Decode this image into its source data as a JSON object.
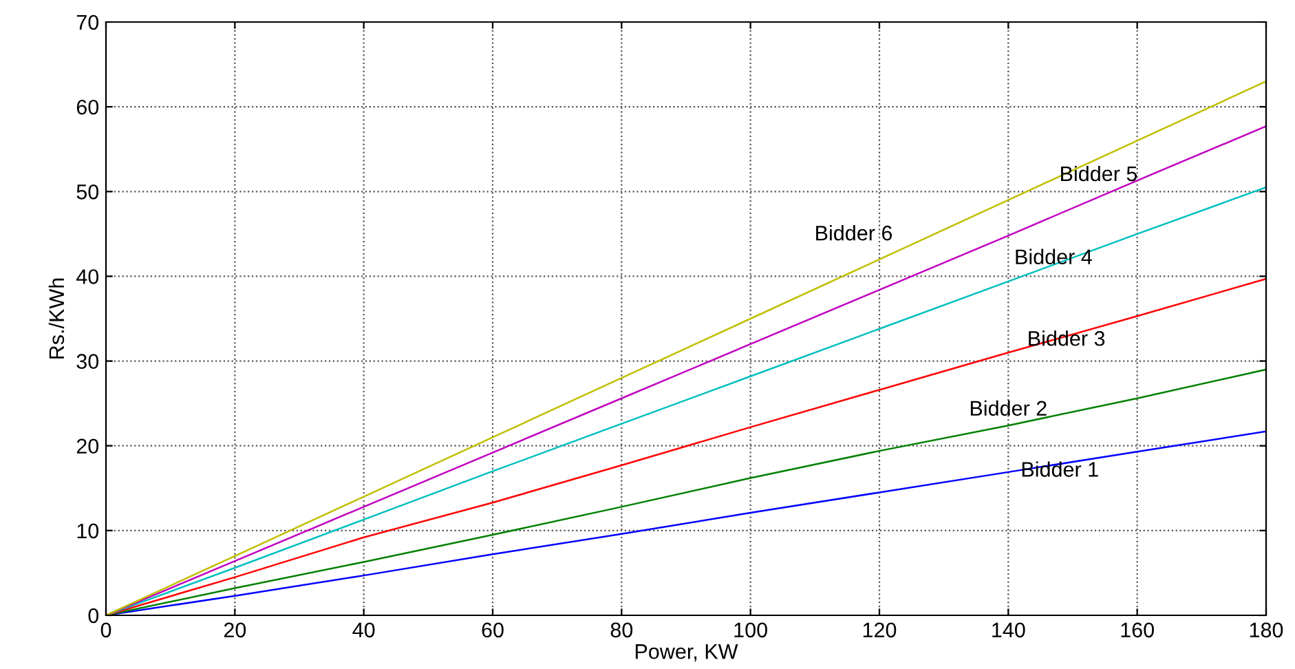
{
  "chart_data": {
    "type": "line",
    "xlabel": "Power, KW",
    "ylabel": "Rs./KWh",
    "x": [
      0,
      20,
      40,
      60,
      80,
      100,
      120,
      140,
      160,
      180
    ],
    "series": [
      {
        "color": "#0000ff",
        "values": [
          0,
          2.3,
          4.7,
          7.2,
          9.6,
          12.1,
          14.5,
          16.9,
          19.3,
          21.7
        ]
      },
      {
        "color": "#008000",
        "values": [
          0,
          3.2,
          6.3,
          9.5,
          12.8,
          16.2,
          19.4,
          22.4,
          25.6,
          29.0
        ]
      },
      {
        "color": "#ff0000",
        "values": [
          0,
          4.5,
          9.2,
          13.3,
          17.7,
          22.2,
          26.6,
          31.0,
          35.3,
          39.7
        ]
      },
      {
        "color": "#00bfbf",
        "values": [
          0,
          5.6,
          11.3,
          17.0,
          22.6,
          28.2,
          33.8,
          39.4,
          45.0,
          50.5
        ]
      },
      {
        "color": "#bf00bf",
        "values": [
          0,
          6.4,
          12.8,
          19.2,
          25.6,
          32.0,
          38.4,
          44.8,
          51.3,
          57.7
        ]
      },
      {
        "color": "#bfbf00",
        "values": [
          0,
          7,
          14,
          21,
          28,
          35,
          42,
          49,
          56,
          63
        ]
      }
    ],
    "annotations": [
      {
        "text": "Bidder 1",
        "x": 148,
        "y": 17.9
      },
      {
        "text": "Bidder 2",
        "x": 140,
        "y": 22.4
      },
      {
        "text": "Bidder 3",
        "x": 149,
        "y": 32.9
      },
      {
        "text": "Bidder 4",
        "x": 147,
        "y": 41.4
      },
      {
        "text": "Bidder 5",
        "x": 154,
        "y": 49.4
      },
      {
        "text": "Bidder 6",
        "x": 116,
        "y": 40.6
      }
    ],
    "xlim": [
      0,
      180
    ],
    "ylim": [
      0,
      70
    ],
    "xticks": [
      0,
      20,
      40,
      60,
      80,
      100,
      120,
      140,
      160,
      180
    ],
    "yticks": [
      0,
      10,
      20,
      30,
      40,
      50,
      60,
      70
    ],
    "grid": true,
    "marker": "none",
    "line_style": "solid"
  }
}
